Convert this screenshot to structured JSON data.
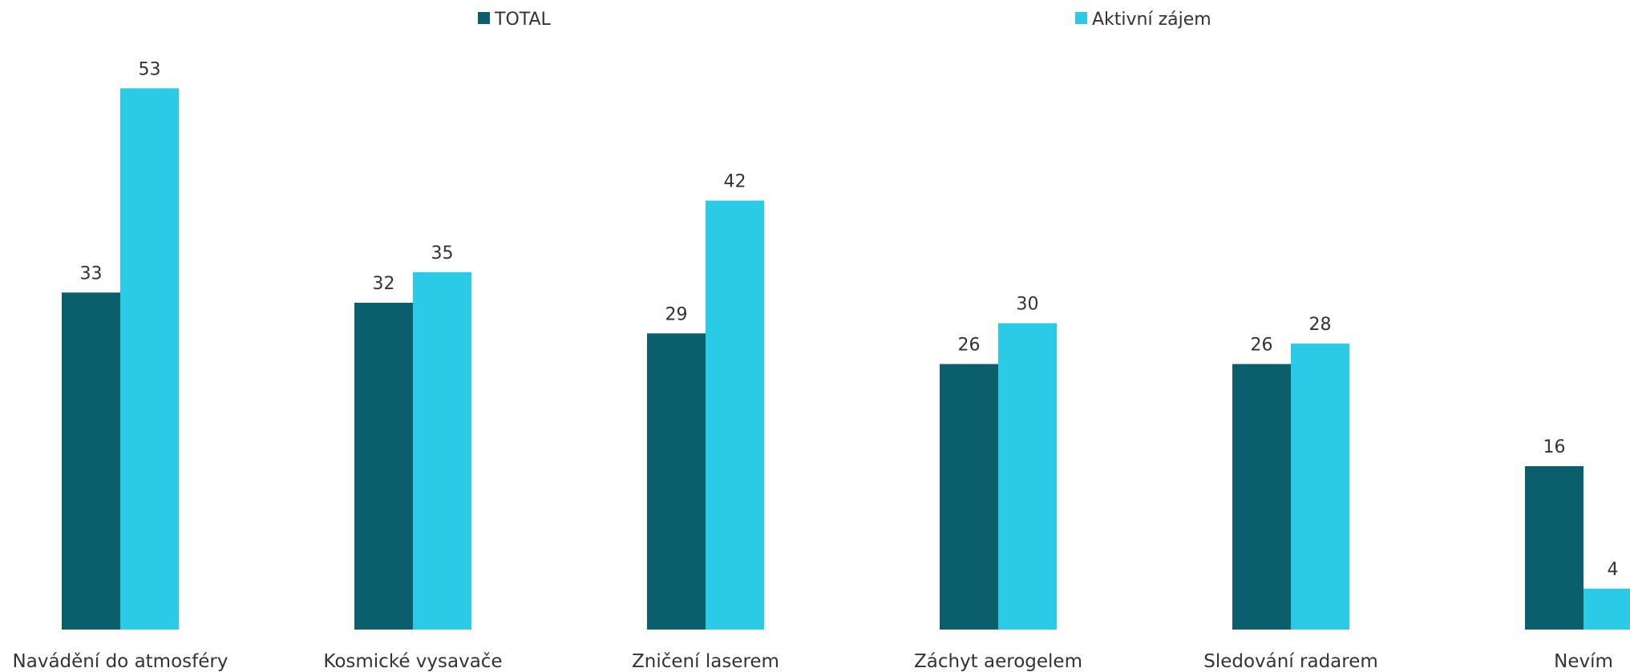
{
  "chart_data": {
    "type": "bar",
    "categories": [
      "Navádění do atmosféry",
      "Kosmické vysavače",
      "Zničení laserem",
      "Záchyt aerogelem",
      "Sledování radarem",
      "Nevím"
    ],
    "series": [
      {
        "name": "TOTAL",
        "values": [
          33,
          32,
          29,
          26,
          26,
          16
        ],
        "color": "#0b5e6b"
      },
      {
        "name": "Aktivní zájem",
        "values": [
          53,
          35,
          42,
          30,
          28,
          4
        ],
        "color": "#2bcbe8"
      }
    ],
    "legend_position": "top",
    "grid": false,
    "ylim": [
      0,
      55
    ]
  }
}
